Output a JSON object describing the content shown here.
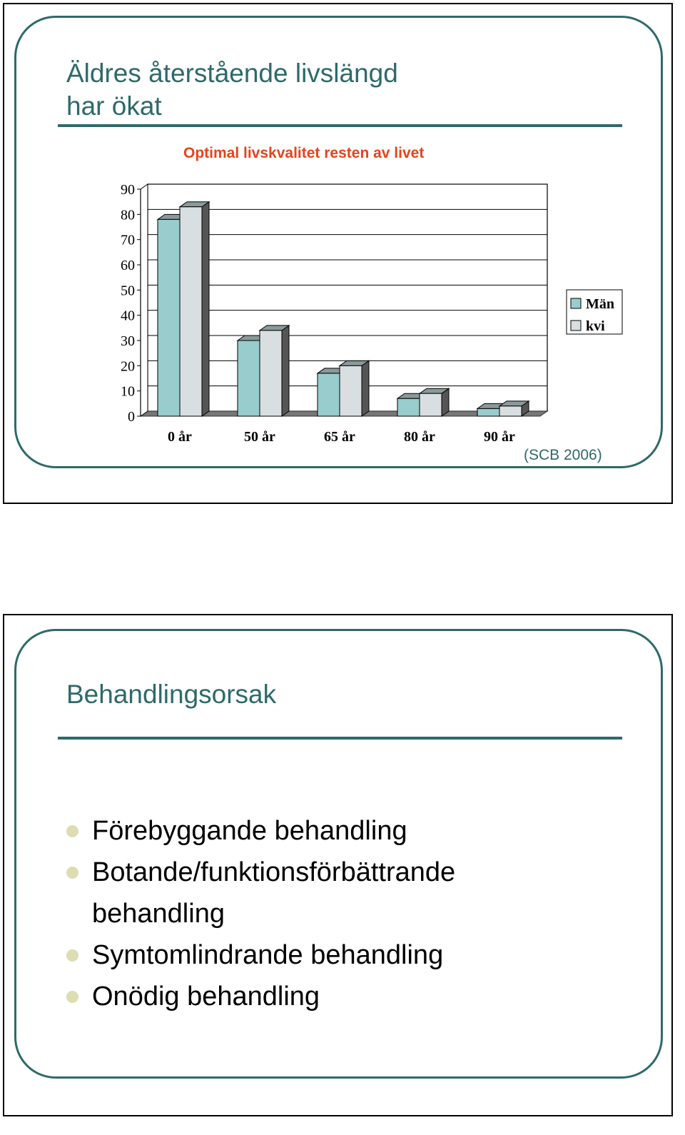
{
  "slide1": {
    "title_line1": "Äldres återstående livslängd",
    "title_line2": "har ökat",
    "source": "(SCB 2006)"
  },
  "chart_data": {
    "type": "bar",
    "title": "Optimal livskvalitet resten av livet",
    "categories": [
      "0 år",
      "50 år",
      "65 år",
      "80 år",
      "90 år"
    ],
    "series": [
      {
        "name": "Män",
        "values": [
          78,
          30,
          17,
          7,
          3
        ],
        "color": "#99cccc"
      },
      {
        "name": "kvi",
        "values": [
          83,
          34,
          20,
          9,
          4
        ],
        "color": "#d9dee0"
      }
    ],
    "ylim": [
      0,
      90
    ],
    "yticks": [
      "0",
      "10",
      "20",
      "30",
      "40",
      "50",
      "60",
      "70",
      "80",
      "90"
    ],
    "grid": true,
    "legend": "right",
    "xlabel": "",
    "ylabel": ""
  },
  "slide2": {
    "title": "Behandlingsorsak",
    "bullets": [
      "Förebyggande behandling",
      "Botande/funktionsförbättrande behandling",
      "Symtomlindrande behandling",
      "Onödig behandling"
    ]
  },
  "colors": {
    "accent": "#2e6a6a",
    "chart_title": "#e8431a",
    "bullet": "#dedcb2"
  }
}
